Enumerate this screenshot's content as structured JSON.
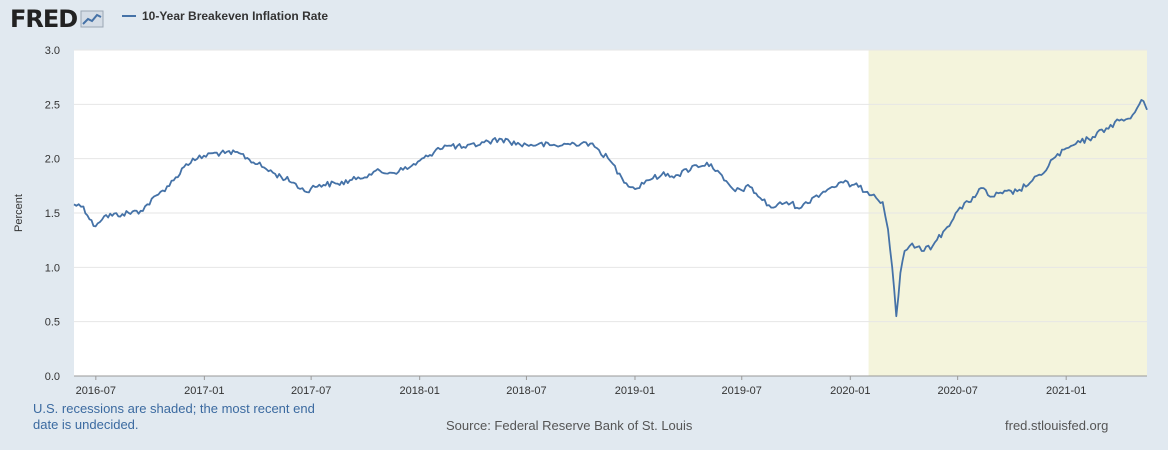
{
  "header": {
    "logo_text": "FRED",
    "legend_label": "10-Year Breakeven Inflation Rate"
  },
  "colors": {
    "series": "#4572a7",
    "recession": "#f4f4dc",
    "page_bg": "#e1e9f0",
    "plot_bg": "#ffffff"
  },
  "footer": {
    "note": "U.S. recessions are shaded; the most recent end date is undecided.",
    "source": "Source: Federal Reserve Bank of St. Louis",
    "url": "fred.stlouisfed.org"
  },
  "chart_data": {
    "type": "line",
    "title": "10-Year Breakeven Inflation Rate",
    "xlabel": "",
    "ylabel": "Percent",
    "ylim": [
      0,
      3
    ],
    "yticks": [
      0.0,
      0.5,
      1.0,
      1.5,
      2.0,
      2.5,
      3.0
    ],
    "ytick_labels": [
      "0.0",
      "0.5",
      "1.0",
      "1.5",
      "2.0",
      "2.5",
      "3.0"
    ],
    "xlim": [
      "2016-05-25",
      "2021-05-18"
    ],
    "xtick_labels": [
      "2016-07",
      "2017-01",
      "2017-07",
      "2018-01",
      "2018-07",
      "2019-01",
      "2019-07",
      "2020-01",
      "2020-07",
      "2021-01"
    ],
    "grid": true,
    "recessions": [
      {
        "start": "2020-02-01",
        "end": "2021-05-18",
        "label": "U.S. recession"
      }
    ],
    "series": [
      {
        "name": "10-Year Breakeven Inflation Rate",
        "x": [
          "2016-05-25",
          "2016-06-10",
          "2016-06-27",
          "2016-07-15",
          "2016-08-15",
          "2016-09-15",
          "2016-10-15",
          "2016-11-10",
          "2016-12-01",
          "2016-12-20",
          "2017-01-15",
          "2017-02-05",
          "2017-03-01",
          "2017-04-01",
          "2017-05-01",
          "2017-06-01",
          "2017-06-20",
          "2017-07-15",
          "2017-08-15",
          "2017-09-15",
          "2017-10-15",
          "2017-11-15",
          "2017-12-15",
          "2018-01-15",
          "2018-02-01",
          "2018-02-20",
          "2018-03-20",
          "2018-04-20",
          "2018-05-20",
          "2018-06-20",
          "2018-07-20",
          "2018-08-20",
          "2018-09-20",
          "2018-10-10",
          "2018-11-01",
          "2018-11-20",
          "2018-12-10",
          "2019-01-01",
          "2019-01-20",
          "2019-02-15",
          "2019-03-15",
          "2019-04-15",
          "2019-05-10",
          "2019-06-01",
          "2019-06-20",
          "2019-07-15",
          "2019-08-01",
          "2019-08-20",
          "2019-09-15",
          "2019-10-10",
          "2019-11-01",
          "2019-12-01",
          "2019-12-20",
          "2020-01-15",
          "2020-02-10",
          "2020-02-25",
          "2020-03-05",
          "2020-03-12",
          "2020-03-19",
          "2020-03-26",
          "2020-04-02",
          "2020-04-15",
          "2020-05-01",
          "2020-05-20",
          "2020-06-10",
          "2020-07-01",
          "2020-07-20",
          "2020-08-10",
          "2020-08-25",
          "2020-09-15",
          "2020-10-10",
          "2020-11-01",
          "2020-11-20",
          "2020-12-10",
          "2021-01-05",
          "2021-01-25",
          "2021-02-15",
          "2021-03-10",
          "2021-04-01",
          "2021-04-20",
          "2021-05-05",
          "2021-05-12",
          "2021-05-18"
        ],
        "values": [
          1.58,
          1.56,
          1.38,
          1.47,
          1.49,
          1.52,
          1.67,
          1.8,
          1.95,
          2.0,
          2.05,
          2.05,
          2.05,
          1.95,
          1.86,
          1.78,
          1.7,
          1.76,
          1.77,
          1.81,
          1.88,
          1.87,
          1.92,
          2.02,
          2.1,
          2.12,
          2.1,
          2.15,
          2.18,
          2.13,
          2.13,
          2.12,
          2.14,
          2.15,
          2.08,
          1.98,
          1.82,
          1.72,
          1.8,
          1.85,
          1.85,
          1.94,
          1.95,
          1.8,
          1.7,
          1.74,
          1.64,
          1.55,
          1.6,
          1.55,
          1.65,
          1.74,
          1.78,
          1.74,
          1.67,
          1.6,
          1.35,
          1.0,
          0.55,
          0.95,
          1.15,
          1.22,
          1.15,
          1.2,
          1.35,
          1.52,
          1.6,
          1.73,
          1.65,
          1.68,
          1.7,
          1.78,
          1.85,
          2.0,
          2.1,
          2.15,
          2.2,
          2.28,
          2.35,
          2.37,
          2.5,
          2.53,
          2.45
        ]
      }
    ]
  }
}
